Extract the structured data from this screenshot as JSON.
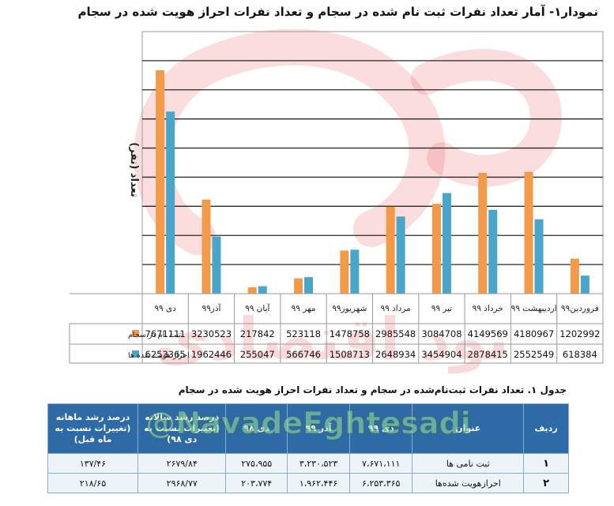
{
  "title": "نمودار۱- آمار تعداد نفرات ثبت نام شده در سجام و تعداد نفرات احراز هویت شده در سجام",
  "chart_data": {
    "type": "bar",
    "categories": [
      "دی ۹۹",
      "آذر۹۹",
      "آبان ۹۹",
      "مهر ۹۹",
      "شهریور۹۹",
      "مرداد ۹۹",
      "تیر ۹۹",
      "خرداد ۹۹",
      "اردیبهشت ۹۹",
      "فروردین۹۹"
    ],
    "series": [
      {
        "name": "ثبت نام در سجام",
        "color": "#f39a4a",
        "values": [
          7671111,
          3230523,
          217842,
          523118,
          1478758,
          2985548,
          3084708,
          4149569,
          4180967,
          1202992
        ]
      },
      {
        "name": "احراز هویت شده ها",
        "color": "#4aa6c9",
        "values": [
          6253365,
          1962446,
          255047,
          566746,
          1508713,
          2648934,
          3454904,
          2878415,
          2552549,
          618384
        ]
      }
    ],
    "ylabel": "تعداد (نفر)",
    "ylim": [
      0,
      9000000
    ],
    "grid": true,
    "layout": "bars with data table below, categories ordered right-to-left"
  },
  "data_table": {
    "rows": [
      {
        "label": "ثبت نام در سجام",
        "values": [
          "7671111",
          "3230523",
          "217842",
          "523118",
          "1478758",
          "2985548",
          "3084708",
          "4149569",
          "4180967",
          "1202992"
        ]
      },
      {
        "label": "احراز هویت شده ها",
        "values": [
          "6253365",
          "1962446",
          "255047",
          "566746",
          "1508713",
          "2648934",
          "3454904",
          "2878415",
          "2552549",
          "618384"
        ]
      }
    ]
  },
  "table": {
    "title": "جدول ۱. تعداد نفرات ثبت‌نام‌شده در سجام و تعداد نفرات احراز هویت شده در سجام",
    "headers": [
      "ردیف",
      "عنوان",
      "دی ۹۹",
      "آذر ۹۹",
      "دی ۹۸",
      "درصد رشد سالانه (تغییرات نسبت به دی ۹۸)",
      "درصد رشد ماهانه (تغییرات نسبت به ماه قبل)"
    ],
    "rows": [
      [
        "۱",
        "ثبت نامی ها",
        "۷،۶۷۱،۱۱۱",
        "۳،۲۳۰،۵۲۳",
        "۲۷۵،۹۵۵",
        "۲۶۷۹/۸۴",
        "۱۳۷/۴۶"
      ],
      [
        "۲",
        "احرازهویت شده‌ها",
        "۶،۲۵۳،۳۶۵",
        "۱،۹۶۲،۴۴۶",
        "۲۰۳،۷۷۴",
        "۲۹۶۸/۷۷",
        "۲۱۸/۶۵"
      ]
    ]
  },
  "watermark": {
    "text": "@NavadeEghtesadi",
    "script_text": "نود اقتصادی",
    "color": "#e8424a"
  }
}
